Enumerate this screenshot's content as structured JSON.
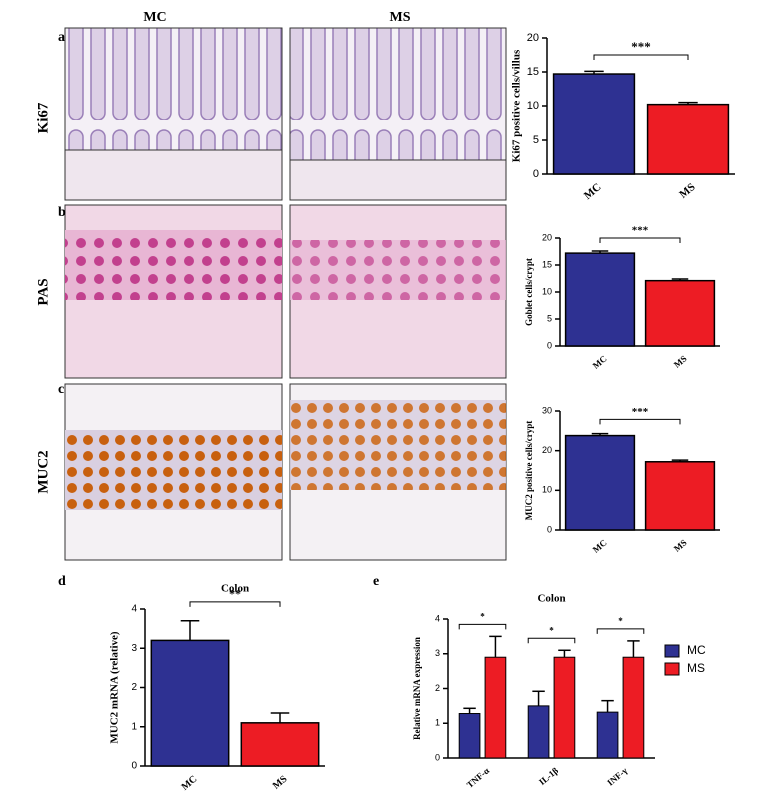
{
  "figure": {
    "panel_labels": [
      "a",
      "b",
      "c",
      "d",
      "e"
    ],
    "columns": [
      "MC",
      "MS"
    ],
    "rows": [
      "Ki67",
      "PAS",
      "MUC2"
    ]
  },
  "chart_data": [
    {
      "type": "bar",
      "ylabel": "Ki67 positive cells/villus",
      "categories": [
        "MC",
        "MS"
      ],
      "values": [
        14.7,
        10.2
      ],
      "errors": [
        0.4,
        0.3
      ],
      "colors": [
        "#2e3192",
        "#ed1c24"
      ],
      "ylim": [
        0,
        20
      ],
      "yticks": [
        0,
        5,
        10,
        15,
        20
      ],
      "annotation": "***"
    },
    {
      "type": "bar",
      "ylabel": "Goblet cells/crypt",
      "categories": [
        "MC",
        "MS"
      ],
      "values": [
        17.2,
        12.1
      ],
      "errors": [
        0.4,
        0.3
      ],
      "colors": [
        "#2e3192",
        "#ed1c24"
      ],
      "ylim": [
        0,
        20
      ],
      "yticks": [
        0,
        5,
        10,
        15,
        20
      ],
      "annotation": "***"
    },
    {
      "type": "bar",
      "ylabel": "MUC2 positive cells/crypt",
      "categories": [
        "MC",
        "MS"
      ],
      "values": [
        23.8,
        17.2
      ],
      "errors": [
        0.5,
        0.4
      ],
      "colors": [
        "#2e3192",
        "#ed1c24"
      ],
      "ylim": [
        0,
        30
      ],
      "yticks": [
        0,
        10,
        20,
        30
      ],
      "annotation": "***"
    },
    {
      "type": "bar",
      "title": "Colon",
      "ylabel": "MUC2 mRNA (relative)",
      "categories": [
        "MC",
        "MS"
      ],
      "values": [
        3.2,
        1.1
      ],
      "errors": [
        0.5,
        0.25
      ],
      "colors": [
        "#2e3192",
        "#ed1c24"
      ],
      "ylim": [
        0,
        4
      ],
      "yticks": [
        0,
        1,
        2,
        3,
        4
      ],
      "annotation": "**"
    },
    {
      "type": "grouped_bar",
      "title": "Colon",
      "ylabel": "Relative mRNA expression",
      "categories": [
        "TNF-α",
        "IL-1β",
        "INF-γ"
      ],
      "series": [
        {
          "name": "MC",
          "color": "#2e3192",
          "values": [
            1.28,
            1.5,
            1.32
          ],
          "errors": [
            0.15,
            0.42,
            0.33
          ]
        },
        {
          "name": "MS",
          "color": "#ed1c24",
          "values": [
            2.9,
            2.9,
            2.9
          ],
          "errors": [
            0.6,
            0.2,
            0.47
          ]
        }
      ],
      "ylim": [
        0,
        4
      ],
      "yticks": [
        0,
        1,
        2,
        3,
        4
      ],
      "annotations": [
        "*",
        "*",
        "*"
      ],
      "legend": "right"
    }
  ]
}
